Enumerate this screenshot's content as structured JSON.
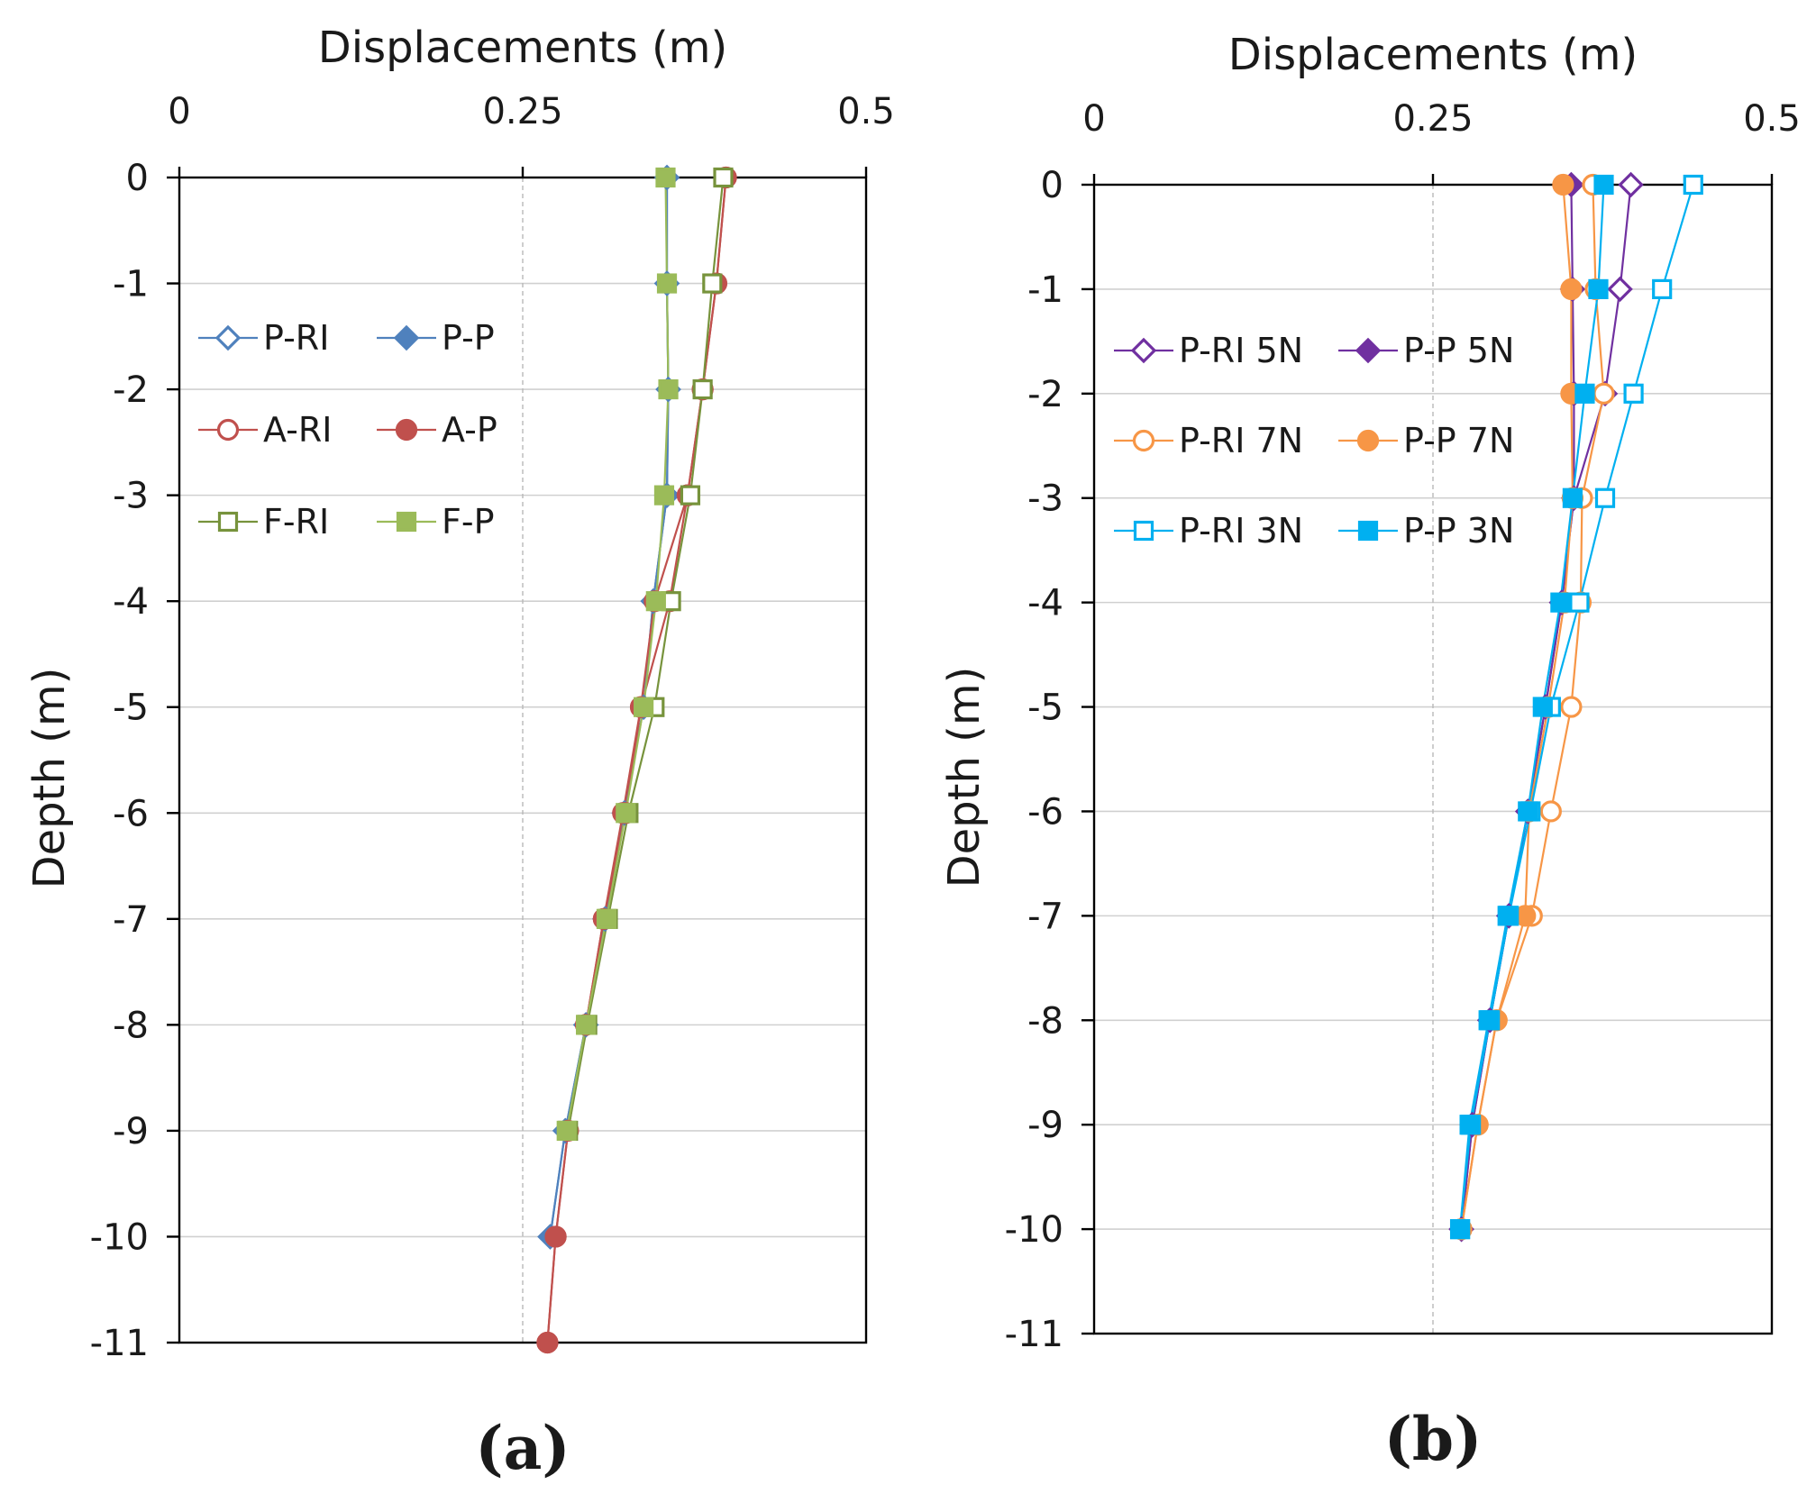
{
  "chart_data": [
    {
      "id": "a",
      "type": "line",
      "panel_label": "(a)",
      "xlabel": "Displacements (m)",
      "ylabel": "Depth (m)",
      "xlim": [
        0,
        0.5
      ],
      "ylim": [
        -11,
        0
      ],
      "x_ticks": [
        "0",
        "0.25",
        "0.5"
      ],
      "y_ticks": [
        "0",
        "-1",
        "-2",
        "-3",
        "-4",
        "-5",
        "-6",
        "-7",
        "-8",
        "-9",
        "-10",
        "-11"
      ],
      "legend_position": "top-left",
      "series": [
        {
          "name": "P-RI",
          "color": "#4f81bd",
          "marker": "diamond",
          "filled": false,
          "x": [
            0.355,
            0.355,
            0.356,
            0.355,
            0.345,
            0.338,
            0.324,
            0.31,
            0.296,
            0.281,
            0.27
          ],
          "y": [
            0,
            -1,
            -2,
            -3,
            -4,
            -5,
            -6,
            -7,
            -8,
            -9,
            -10
          ]
        },
        {
          "name": "P-P",
          "color": "#4f81bd",
          "marker": "diamond",
          "filled": true,
          "x": [
            0.355,
            0.355,
            0.356,
            0.355,
            0.345,
            0.338,
            0.324,
            0.31,
            0.296,
            0.281,
            0.27
          ],
          "y": [
            0,
            -1,
            -2,
            -3,
            -4,
            -5,
            -6,
            -7,
            -8,
            -9,
            -10
          ]
        },
        {
          "name": "A-RI",
          "color": "#c0504d",
          "marker": "circle",
          "filled": false,
          "x": [
            0.398,
            0.391,
            0.381,
            0.37,
            0.357,
            0.336,
            0.325,
            0.309,
            0.296,
            0.283,
            0.274,
            0.268
          ],
          "y": [
            0,
            -1,
            -2,
            -3,
            -4,
            -5,
            -6,
            -7,
            -8,
            -9,
            -10,
            -11
          ]
        },
        {
          "name": "A-P",
          "color": "#c0504d",
          "marker": "circle",
          "filled": true,
          "x": [
            0.398,
            0.391,
            0.381,
            0.37,
            0.346,
            0.336,
            0.323,
            0.309,
            0.296,
            0.283,
            0.274,
            0.268
          ],
          "y": [
            0,
            -1,
            -2,
            -3,
            -4,
            -5,
            -6,
            -7,
            -8,
            -9,
            -10,
            -11
          ]
        },
        {
          "name": "F-RI",
          "color": "#77933c",
          "marker": "square",
          "filled": false,
          "x": [
            0.396,
            0.388,
            0.381,
            0.372,
            0.358,
            0.346,
            0.327,
            0.312,
            0.297,
            0.283
          ],
          "y": [
            0,
            -1,
            -2,
            -3,
            -4,
            -5,
            -6,
            -7,
            -8,
            -9
          ]
        },
        {
          "name": "F-P",
          "color": "#9bbb59",
          "marker": "square",
          "filled": true,
          "x": [
            0.354,
            0.355,
            0.356,
            0.353,
            0.347,
            0.338,
            0.325,
            0.311,
            0.296,
            0.282
          ],
          "y": [
            0,
            -1,
            -2,
            -3,
            -4,
            -5,
            -6,
            -7,
            -8,
            -9
          ]
        }
      ]
    },
    {
      "id": "b",
      "type": "line",
      "panel_label": "(b)",
      "xlabel": "Displacements (m)",
      "ylabel": "Depth (m)",
      "xlim": [
        0,
        0.5
      ],
      "ylim": [
        -11,
        0
      ],
      "x_ticks": [
        "0",
        "0.25",
        "0.5"
      ],
      "y_ticks": [
        "0",
        "-1",
        "-2",
        "-3",
        "-4",
        "-5",
        "-6",
        "-7",
        "-8",
        "-9",
        "-10",
        "-11"
      ],
      "legend_position": "top-left",
      "series": [
        {
          "name": "P-RI 5N",
          "color": "#7030a0",
          "marker": "diamond",
          "filled": false,
          "x": [
            0.396,
            0.388,
            0.377,
            0.354,
            0.345,
            0.333,
            0.32,
            0.306,
            0.292,
            0.279,
            0.271
          ],
          "y": [
            0,
            -1,
            -2,
            -3,
            -4,
            -5,
            -6,
            -7,
            -8,
            -9,
            -10
          ]
        },
        {
          "name": "P-P 5N",
          "color": "#7030a0",
          "marker": "diamond",
          "filled": true,
          "x": [
            0.352,
            0.353,
            0.354,
            0.354,
            0.345,
            0.333,
            0.32,
            0.306,
            0.292,
            0.279,
            0.271
          ],
          "y": [
            0,
            -1,
            -2,
            -3,
            -4,
            -5,
            -6,
            -7,
            -8,
            -9,
            -10
          ]
        },
        {
          "name": "P-RI 7N",
          "color": "#f79646",
          "marker": "circle",
          "filled": false,
          "x": [
            0.368,
            0.37,
            0.376,
            0.36,
            0.359,
            0.352,
            0.337,
            0.323,
            0.297,
            0.283,
            0.271
          ],
          "y": [
            0,
            -1,
            -2,
            -3,
            -4,
            -5,
            -6,
            -7,
            -8,
            -9,
            -10
          ]
        },
        {
          "name": "P-P 7N",
          "color": "#f79646",
          "marker": "circle",
          "filled": true,
          "x": [
            0.346,
            0.352,
            0.352,
            0.353,
            0.347,
            0.335,
            0.321,
            0.318,
            0.297,
            0.283,
            0.271
          ],
          "y": [
            0,
            -1,
            -2,
            -3,
            -4,
            -5,
            -6,
            -7,
            -8,
            -9,
            -10
          ]
        },
        {
          "name": "P-RI 3N",
          "color": "#00b0f0",
          "marker": "square",
          "filled": false,
          "x": [
            0.442,
            0.419,
            0.398,
            0.377,
            0.358,
            0.337,
            0.322,
            0.306,
            0.292,
            0.278,
            0.27
          ],
          "y": [
            0,
            -1,
            -2,
            -3,
            -4,
            -5,
            -6,
            -7,
            -8,
            -9,
            -10
          ]
        },
        {
          "name": "P-P 3N",
          "color": "#00b0f0",
          "marker": "square",
          "filled": true,
          "x": [
            0.376,
            0.372,
            0.362,
            0.353,
            0.344,
            0.331,
            0.32,
            0.305,
            0.291,
            0.277,
            0.27
          ],
          "y": [
            0,
            -1,
            -2,
            -3,
            -4,
            -5,
            -6,
            -7,
            -8,
            -9,
            -10
          ]
        }
      ]
    }
  ]
}
